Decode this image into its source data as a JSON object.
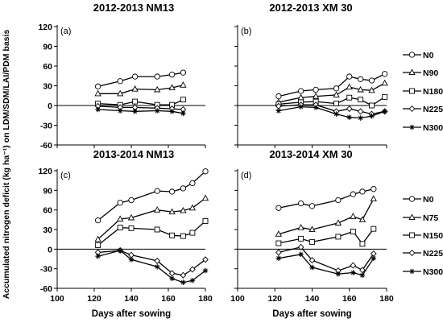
{
  "figure": {
    "ylabel": "Accumulated nitrogen deficit (kg ha⁻¹) on LDM/SDM/LAI/PDM basis"
  },
  "chart_data": [
    {
      "type": "line",
      "panel_label": "(a)",
      "title": "2012-2013  NM13",
      "xlim": [
        100,
        180
      ],
      "ylim": [
        -60,
        120
      ],
      "xticks": [
        100,
        120,
        140,
        160,
        180
      ],
      "yticks": [
        -60,
        -30,
        0,
        30,
        60,
        90,
        120
      ],
      "show_xtick_labels": false,
      "show_ytick_labels": true,
      "xlabel": "",
      "series": [
        {
          "name": "N0",
          "marker": "circle",
          "x": [
            122,
            134,
            142,
            154,
            162,
            168
          ],
          "y": [
            29,
            37,
            44,
            44,
            47,
            50
          ]
        },
        {
          "name": "N90",
          "marker": "triangle",
          "x": [
            122,
            134,
            142,
            154,
            162,
            168
          ],
          "y": [
            18,
            18,
            25,
            24,
            27,
            31
          ]
        },
        {
          "name": "N180",
          "marker": "square",
          "x": [
            122,
            134,
            142,
            154,
            162,
            168
          ],
          "y": [
            3,
            1,
            6,
            1,
            1,
            9
          ]
        },
        {
          "name": "N225",
          "marker": "diamond",
          "x": [
            122,
            134,
            142,
            154,
            162,
            168
          ],
          "y": [
            -1,
            -3,
            -3,
            -4,
            -5,
            -6
          ]
        },
        {
          "name": "N300",
          "marker": "star",
          "x": [
            122,
            134,
            142,
            154,
            162,
            168
          ],
          "y": [
            -6,
            -8,
            -9,
            -8,
            -9,
            -12
          ]
        }
      ]
    },
    {
      "type": "line",
      "panel_label": "(b)",
      "title": "2012-2013  XM 30",
      "xlim": [
        100,
        180
      ],
      "ylim": [
        -60,
        120
      ],
      "xticks": [
        100,
        120,
        140,
        160,
        180
      ],
      "yticks": [
        -60,
        -30,
        0,
        30,
        60,
        90,
        120
      ],
      "show_xtick_labels": false,
      "show_ytick_labels": false,
      "xlabel": "",
      "legend": "right",
      "series": [
        {
          "name": "N0",
          "marker": "circle",
          "x": [
            122,
            134,
            142,
            153,
            160,
            166,
            172,
            179
          ],
          "y": [
            14,
            22,
            24,
            26,
            44,
            40,
            38,
            48
          ]
        },
        {
          "name": "N90",
          "marker": "triangle",
          "x": [
            122,
            134,
            142,
            153,
            160,
            166,
            172,
            179
          ],
          "y": [
            5,
            12,
            14,
            16,
            28,
            24,
            23,
            34
          ]
        },
        {
          "name": "N180",
          "marker": "square",
          "x": [
            122,
            134,
            142,
            153,
            160,
            166,
            172,
            179
          ],
          "y": [
            2,
            5,
            6,
            3,
            12,
            9,
            0,
            13
          ]
        },
        {
          "name": "N225",
          "marker": "diamond",
          "x": [
            122,
            134,
            142,
            153,
            160,
            166,
            172,
            179
          ],
          "y": [
            -1,
            1,
            1,
            -9,
            -5,
            -9,
            -13,
            -9
          ]
        },
        {
          "name": "N300",
          "marker": "star",
          "x": [
            122,
            134,
            142,
            153,
            160,
            166,
            172,
            179
          ],
          "y": [
            -8,
            -2,
            -3,
            -13,
            -18,
            -19,
            -16,
            -9
          ]
        }
      ]
    },
    {
      "type": "line",
      "panel_label": "(c)",
      "title": "2013-2014 NM13",
      "xlim": [
        100,
        180
      ],
      "ylim": [
        -60,
        120
      ],
      "xticks": [
        100,
        120,
        140,
        160,
        180
      ],
      "yticks": [
        -60,
        -30,
        0,
        30,
        60,
        90,
        120
      ],
      "show_xtick_labels": true,
      "show_ytick_labels": true,
      "xlabel": "Days after sowing",
      "series": [
        {
          "name": "N0",
          "marker": "circle",
          "x": [
            122,
            134,
            140,
            154,
            162,
            168,
            173,
            180
          ],
          "y": [
            44,
            71,
            75,
            89,
            88,
            93,
            101,
            119
          ]
        },
        {
          "name": "N90",
          "marker": "triangle",
          "x": [
            122,
            134,
            140,
            154,
            162,
            168,
            173,
            180
          ],
          "y": [
            15,
            46,
            48,
            60,
            57,
            59,
            63,
            78
          ]
        },
        {
          "name": "N180",
          "marker": "square",
          "x": [
            122,
            134,
            140,
            154,
            162,
            168,
            173,
            180
          ],
          "y": [
            6,
            33,
            32,
            30,
            21,
            20,
            25,
            43
          ]
        },
        {
          "name": "N225",
          "marker": "diamond",
          "x": [
            122,
            134,
            140,
            154,
            162,
            168,
            173,
            180
          ],
          "y": [
            -5,
            -2,
            -9,
            -18,
            -37,
            -40,
            -31,
            -16
          ]
        },
        {
          "name": "N300",
          "marker": "star",
          "x": [
            122,
            134,
            140,
            154,
            162,
            168,
            173,
            180
          ],
          "y": [
            -11,
            -2,
            -16,
            -27,
            -45,
            -51,
            -48,
            -33
          ]
        }
      ]
    },
    {
      "type": "line",
      "panel_label": "(d)",
      "title": "2013-2014 XM 30",
      "xlim": [
        100,
        180
      ],
      "ylim": [
        -60,
        120
      ],
      "xticks": [
        100,
        120,
        140,
        160,
        180
      ],
      "yticks": [
        -60,
        -30,
        0,
        30,
        60,
        90,
        120
      ],
      "show_xtick_labels": true,
      "show_ytick_labels": false,
      "xlabel": "Days after sowing",
      "legend": "right",
      "series": [
        {
          "name": "N0",
          "marker": "circle",
          "x": [
            122,
            134,
            140,
            154,
            162,
            167,
            173
          ],
          "y": [
            63,
            70,
            66,
            75,
            84,
            88,
            92
          ]
        },
        {
          "name": "N75",
          "marker": "triangle",
          "x": [
            122,
            134,
            140,
            154,
            162,
            167,
            173
          ],
          "y": [
            23,
            33,
            30,
            40,
            50,
            45,
            77
          ]
        },
        {
          "name": "N150",
          "marker": "square",
          "x": [
            122,
            134,
            140,
            154,
            162,
            167,
            173
          ],
          "y": [
            9,
            16,
            11,
            19,
            27,
            8,
            31
          ]
        },
        {
          "name": "N225",
          "marker": "diamond",
          "x": [
            122,
            134,
            140,
            154,
            162,
            167,
            173
          ],
          "y": [
            -5,
            3,
            -17,
            -33,
            -25,
            -32,
            -7
          ]
        },
        {
          "name": "N300",
          "marker": "star",
          "x": [
            122,
            134,
            140,
            154,
            162,
            167,
            173
          ],
          "y": [
            -14,
            -8,
            -28,
            -38,
            -36,
            -40,
            -14
          ]
        }
      ]
    }
  ]
}
